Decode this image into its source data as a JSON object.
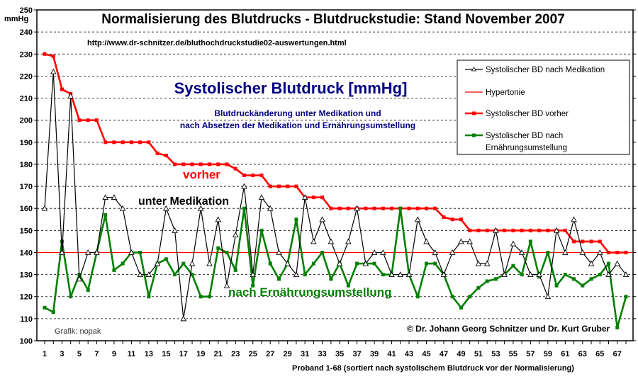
{
  "chart_data": {
    "type": "line",
    "title": "Normalisierung des Blutdrucks - Blutdruckstudie: Stand November 2007",
    "url": "http://www.dr-schnitzer.de/bluthochdruckstudie02-auswertungen.html",
    "subtitle": "Systolischer Blutdruck [mmHg]",
    "description_lines": [
      "Blutdruckänderung unter Medikation und",
      "nach Absetzen der Medikation und Ernährungsumstellung"
    ],
    "ylabel": "mmHg",
    "xlabel": "Proband 1-68  (sortiert nach systolischem Blutdruck vor der Normalisierung)",
    "ylim": [
      100,
      250
    ],
    "yticks": [
      100,
      110,
      120,
      130,
      140,
      150,
      160,
      170,
      180,
      190,
      200,
      210,
      220,
      230,
      240,
      250
    ],
    "xticks": [
      1,
      3,
      5,
      7,
      9,
      11,
      13,
      15,
      17,
      19,
      21,
      23,
      25,
      27,
      29,
      31,
      33,
      35,
      37,
      39,
      41,
      43,
      45,
      47,
      49,
      51,
      53,
      55,
      57,
      59,
      61,
      63,
      65,
      67
    ],
    "x_count": 68,
    "grid": true,
    "legend_position": "top-right",
    "annotations": {
      "vorher": "vorher",
      "medikation": "unter Medikation",
      "ernaehrung": "nach Ernährungsumstellung",
      "grafik": "Grafik: nopak",
      "copyright": "© Dr. Johann Georg Schnitzer und Dr. Kurt Gruber"
    },
    "hypertonie": {
      "name": "Hypertonie",
      "value": 140,
      "color": "#ff0000"
    },
    "series": [
      {
        "name": "Systolischer BD nach Medikation",
        "color": "#000000",
        "marker": "triangle",
        "values": [
          160,
          222,
          140,
          211,
          128,
          140,
          140,
          165,
          165,
          160,
          140,
          130,
          130,
          135,
          160,
          150,
          110,
          135,
          160,
          135,
          155,
          125,
          148,
          170,
          130,
          165,
          160,
          140,
          135,
          130,
          165,
          145,
          155,
          145,
          135,
          145,
          160,
          135,
          140,
          140,
          130,
          130,
          130,
          155,
          145,
          140,
          130,
          140,
          145,
          145,
          135,
          135,
          150,
          130,
          144,
          140,
          130,
          130,
          120,
          150,
          140,
          155,
          140,
          135,
          140,
          130,
          135,
          130
        ]
      },
      {
        "name": "Systolischer BD vorher",
        "color": "#ff0000",
        "marker": "square",
        "values": [
          230,
          229,
          214,
          212,
          200,
          200,
          200,
          190,
          190,
          190,
          190,
          190,
          190,
          185,
          184,
          180,
          180,
          180,
          180,
          180,
          180,
          180,
          178,
          175,
          175,
          175,
          170,
          170,
          170,
          170,
          165,
          165,
          165,
          160,
          160,
          160,
          160,
          160,
          160,
          160,
          160,
          160,
          160,
          160,
          160,
          160,
          156,
          155,
          155,
          150,
          150,
          150,
          150,
          150,
          150,
          150,
          150,
          150,
          150,
          150,
          150,
          145,
          145,
          145,
          145,
          140,
          140,
          140
        ]
      },
      {
        "name": "Systolischer BD nach Ernährungsumstellung",
        "legend_lines": [
          "Systolischer BD nach",
          "Ernährungsumstellung"
        ],
        "color": "#008000",
        "marker": "square",
        "values": [
          115,
          113,
          145,
          120,
          130,
          123,
          140,
          157,
          132,
          135,
          140,
          140,
          120,
          135,
          137,
          130,
          135,
          130,
          120,
          120,
          142,
          140,
          132,
          160,
          125,
          150,
          135,
          128,
          135,
          155,
          130,
          135,
          140,
          128,
          135,
          125,
          135,
          135,
          135,
          130,
          130,
          160,
          130,
          120,
          135,
          135,
          130,
          120,
          115,
          120,
          124,
          127,
          128,
          130,
          134,
          130,
          145,
          129,
          140,
          125,
          130,
          128,
          125,
          128,
          130,
          135,
          106,
          120
        ]
      }
    ]
  }
}
